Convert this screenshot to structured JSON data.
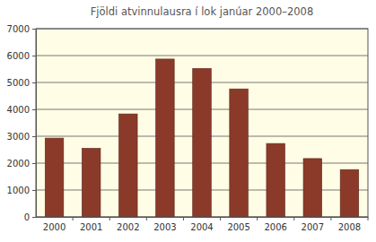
{
  "chart_data": {
    "type": "bar",
    "title": "Fjöldi atvinnulausra í lok janúar 2000–2008",
    "categories": [
      "2000",
      "2001",
      "2002",
      "2003",
      "2004",
      "2005",
      "2006",
      "2007",
      "2008"
    ],
    "values": [
      2930,
      2550,
      3830,
      5870,
      5520,
      4760,
      2730,
      2170,
      1760
    ],
    "color": "#8b3a2a",
    "ylim": [
      0,
      7000
    ],
    "yticks": [
      0,
      1000,
      2000,
      3000,
      4000,
      5000,
      6000,
      7000
    ],
    "grid": true
  }
}
